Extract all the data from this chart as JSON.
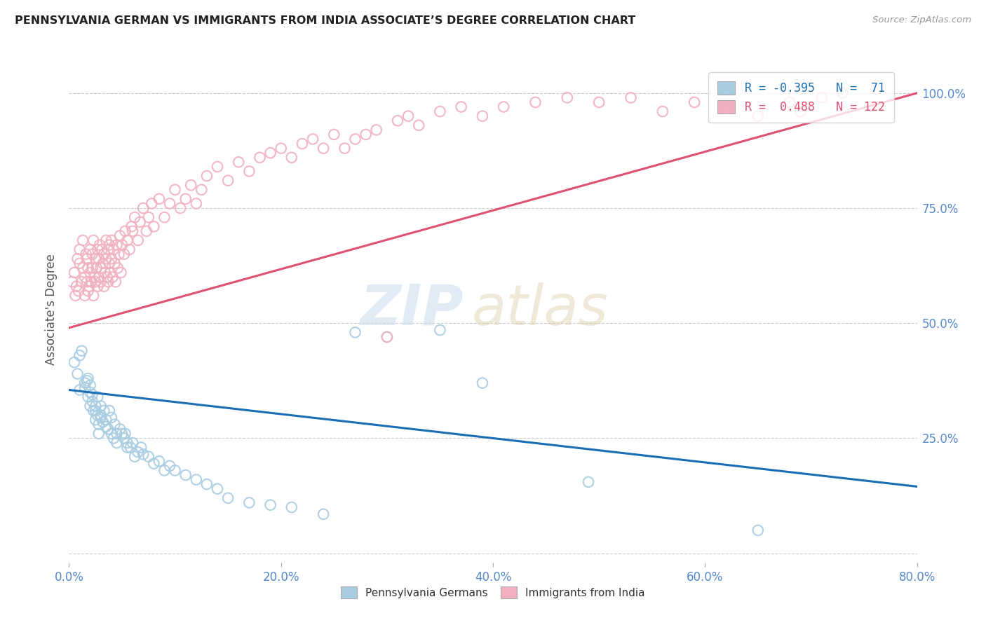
{
  "title": "PENNSYLVANIA GERMAN VS IMMIGRANTS FROM INDIA ASSOCIATE’S DEGREE CORRELATION CHART",
  "source": "Source: ZipAtlas.com",
  "ylabel": "Associate's Degree",
  "ytick_values": [
    0.0,
    0.25,
    0.5,
    0.75,
    1.0
  ],
  "ytick_labels_right": [
    "",
    "25.0%",
    "50.0%",
    "75.0%",
    "100.0%"
  ],
  "xtick_values": [
    0.0,
    0.2,
    0.4,
    0.6,
    0.8
  ],
  "xtick_labels": [
    "0.0%",
    "20.0%",
    "40.0%",
    "60.0%",
    "80.0%"
  ],
  "xlim": [
    0.0,
    0.8
  ],
  "ylim": [
    -0.02,
    1.08
  ],
  "blue_R": -0.395,
  "blue_N": 71,
  "pink_R": 0.488,
  "pink_N": 122,
  "scatter_blue_color": "#a8cce0",
  "scatter_pink_color": "#f0b0c0",
  "line_blue_color": "#1a6eb5",
  "line_pink_color": "#e05070",
  "watermark_zip": "ZIP",
  "watermark_atlas": "atlas",
  "legend_blue_label": "Pennsylvania Germans",
  "legend_pink_label": "Immigrants from India",
  "blue_line_x0": 0.0,
  "blue_line_y0": 0.355,
  "blue_line_x1": 0.8,
  "blue_line_y1": 0.145,
  "pink_line_x0": 0.0,
  "pink_line_y0": 0.49,
  "pink_line_x1": 0.8,
  "pink_line_y1": 1.0,
  "blue_scatter_x": [
    0.005,
    0.008,
    0.01,
    0.01,
    0.012,
    0.015,
    0.015,
    0.017,
    0.018,
    0.018,
    0.02,
    0.02,
    0.02,
    0.022,
    0.022,
    0.023,
    0.025,
    0.025,
    0.025,
    0.027,
    0.027,
    0.028,
    0.028,
    0.03,
    0.03,
    0.03,
    0.032,
    0.033,
    0.035,
    0.035,
    0.037,
    0.038,
    0.04,
    0.04,
    0.042,
    0.043,
    0.045,
    0.045,
    0.048,
    0.05,
    0.052,
    0.053,
    0.055,
    0.055,
    0.058,
    0.06,
    0.062,
    0.065,
    0.068,
    0.07,
    0.075,
    0.08,
    0.085,
    0.09,
    0.095,
    0.1,
    0.11,
    0.12,
    0.13,
    0.14,
    0.15,
    0.17,
    0.19,
    0.21,
    0.24,
    0.27,
    0.3,
    0.35,
    0.39,
    0.49,
    0.65
  ],
  "blue_scatter_y": [
    0.415,
    0.39,
    0.43,
    0.355,
    0.44,
    0.36,
    0.37,
    0.375,
    0.38,
    0.34,
    0.35,
    0.365,
    0.32,
    0.345,
    0.33,
    0.31,
    0.31,
    0.29,
    0.32,
    0.3,
    0.34,
    0.26,
    0.28,
    0.3,
    0.295,
    0.32,
    0.285,
    0.31,
    0.275,
    0.29,
    0.27,
    0.31,
    0.26,
    0.295,
    0.25,
    0.28,
    0.26,
    0.24,
    0.27,
    0.26,
    0.25,
    0.26,
    0.23,
    0.24,
    0.23,
    0.24,
    0.21,
    0.22,
    0.23,
    0.215,
    0.21,
    0.195,
    0.2,
    0.18,
    0.19,
    0.18,
    0.17,
    0.16,
    0.15,
    0.14,
    0.12,
    0.11,
    0.105,
    0.1,
    0.085,
    0.48,
    0.47,
    0.485,
    0.37,
    0.155,
    0.05
  ],
  "pink_scatter_x": [
    0.003,
    0.005,
    0.006,
    0.007,
    0.008,
    0.009,
    0.01,
    0.01,
    0.012,
    0.013,
    0.013,
    0.015,
    0.015,
    0.016,
    0.017,
    0.017,
    0.018,
    0.018,
    0.019,
    0.02,
    0.02,
    0.021,
    0.022,
    0.022,
    0.023,
    0.023,
    0.024,
    0.025,
    0.025,
    0.026,
    0.027,
    0.027,
    0.028,
    0.028,
    0.029,
    0.03,
    0.03,
    0.031,
    0.032,
    0.033,
    0.033,
    0.034,
    0.035,
    0.035,
    0.036,
    0.037,
    0.037,
    0.038,
    0.038,
    0.039,
    0.04,
    0.04,
    0.041,
    0.042,
    0.043,
    0.044,
    0.045,
    0.046,
    0.047,
    0.048,
    0.049,
    0.05,
    0.052,
    0.053,
    0.055,
    0.057,
    0.059,
    0.06,
    0.062,
    0.065,
    0.067,
    0.07,
    0.073,
    0.075,
    0.078,
    0.08,
    0.085,
    0.09,
    0.095,
    0.1,
    0.105,
    0.11,
    0.115,
    0.12,
    0.125,
    0.13,
    0.14,
    0.15,
    0.16,
    0.17,
    0.18,
    0.19,
    0.2,
    0.21,
    0.22,
    0.23,
    0.24,
    0.25,
    0.26,
    0.27,
    0.28,
    0.29,
    0.3,
    0.31,
    0.32,
    0.33,
    0.35,
    0.37,
    0.39,
    0.41,
    0.44,
    0.47,
    0.5,
    0.53,
    0.56,
    0.59,
    0.62,
    0.65,
    0.68,
    0.69,
    0.71,
    0.73
  ],
  "pink_scatter_y": [
    0.59,
    0.61,
    0.56,
    0.58,
    0.64,
    0.57,
    0.63,
    0.66,
    0.59,
    0.62,
    0.68,
    0.56,
    0.6,
    0.65,
    0.59,
    0.64,
    0.57,
    0.62,
    0.58,
    0.66,
    0.61,
    0.59,
    0.65,
    0.62,
    0.68,
    0.56,
    0.6,
    0.64,
    0.59,
    0.62,
    0.66,
    0.58,
    0.64,
    0.6,
    0.67,
    0.62,
    0.59,
    0.66,
    0.63,
    0.58,
    0.65,
    0.61,
    0.68,
    0.64,
    0.6,
    0.66,
    0.59,
    0.63,
    0.67,
    0.61,
    0.68,
    0.64,
    0.6,
    0.66,
    0.63,
    0.59,
    0.67,
    0.62,
    0.65,
    0.69,
    0.61,
    0.67,
    0.65,
    0.7,
    0.68,
    0.66,
    0.71,
    0.7,
    0.73,
    0.68,
    0.72,
    0.75,
    0.7,
    0.73,
    0.76,
    0.71,
    0.77,
    0.73,
    0.76,
    0.79,
    0.75,
    0.77,
    0.8,
    0.76,
    0.79,
    0.82,
    0.84,
    0.81,
    0.85,
    0.83,
    0.86,
    0.87,
    0.88,
    0.86,
    0.89,
    0.9,
    0.88,
    0.91,
    0.88,
    0.9,
    0.91,
    0.92,
    0.47,
    0.94,
    0.95,
    0.93,
    0.96,
    0.97,
    0.95,
    0.97,
    0.98,
    0.99,
    0.98,
    0.99,
    0.96,
    0.98,
    0.97,
    0.95,
    0.98,
    0.96,
    0.99,
    1.0
  ],
  "grid_color": "#cccccc",
  "background_color": "#ffffff",
  "tick_color": "#5588cc"
}
